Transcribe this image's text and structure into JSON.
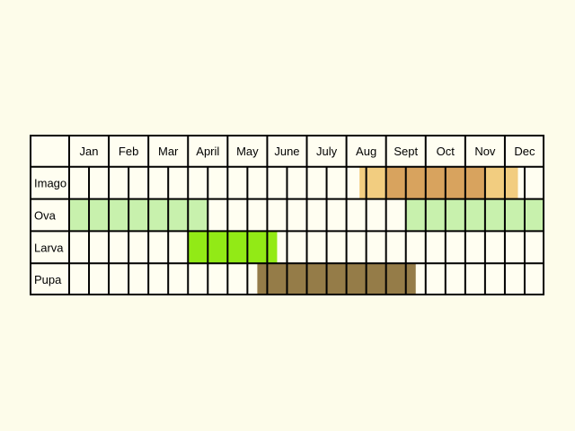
{
  "months": [
    "Jan",
    "Feb",
    "Mar",
    "April",
    "May",
    "June",
    "July",
    "Aug",
    "Sept",
    "Oct",
    "Nov",
    "Dec"
  ],
  "stages": [
    {
      "name": "Imago",
      "bands": [
        {
          "start": 7.33,
          "end": 11.33,
          "color": "#f2cd80"
        },
        {
          "start": 8.0,
          "end": 10.5,
          "color": "#d8a35e"
        }
      ]
    },
    {
      "name": "Ova",
      "bands": [
        {
          "start": 0.0,
          "end": 3.5,
          "color": "#c8f1ad"
        },
        {
          "start": 8.5,
          "end": 12.0,
          "color": "#c8f1ad"
        }
      ]
    },
    {
      "name": "Larva",
      "bands": [
        {
          "start": 3.0,
          "end": 5.25,
          "color": "#92ea16"
        }
      ]
    },
    {
      "name": "Pupa",
      "bands": [
        {
          "start": 4.75,
          "end": 8.75,
          "color": "#957c48"
        }
      ]
    }
  ],
  "colors": {
    "background": "#fdfcea",
    "cell": "#fffef1",
    "grid": "#000000"
  }
}
